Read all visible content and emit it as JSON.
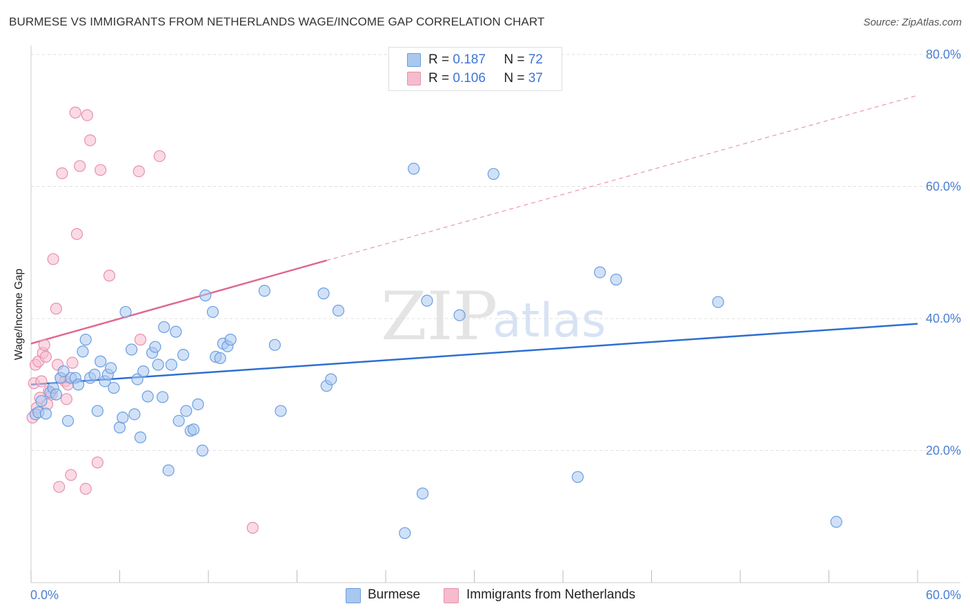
{
  "title": "BURMESE VS IMMIGRANTS FROM NETHERLANDS WAGE/INCOME GAP CORRELATION CHART",
  "source": "Source: ZipAtlas.com",
  "colors": {
    "blue_fill": "#a9c8f0",
    "blue_stroke": "#6a9de0",
    "blue_line": "#2d6fd0",
    "pink_fill": "#f5bccd",
    "pink_stroke": "#e890ac",
    "pink_line": "#e06890",
    "axis_text": "#4a7fd4",
    "grid": "#dddddd"
  },
  "legend_top": {
    "r_label": "R =",
    "n_label": "N =",
    "series": [
      {
        "r": "0.187",
        "n": "72"
      },
      {
        "r": "0.106",
        "n": "37"
      }
    ]
  },
  "legend_bottom": [
    "Burmese",
    "Immigrants from Netherlands"
  ],
  "watermark": {
    "zip": "ZIP",
    "atlas": "atlas"
  },
  "chart_data": {
    "type": "scatter",
    "title": "BURMESE VS IMMIGRANTS FROM NETHERLANDS WAGE/INCOME GAP CORRELATION CHART",
    "xlabel": "",
    "ylabel": "Wage/Income Gap",
    "xlim": [
      0,
      60
    ],
    "ylim": [
      0,
      80
    ],
    "x_tick_labels": [
      "0.0%",
      "60.0%"
    ],
    "y_ticks": [
      20,
      40,
      60,
      80
    ],
    "y_tick_labels": [
      "20.0%",
      "40.0%",
      "60.0%",
      "80.0%"
    ],
    "grid": true,
    "series": [
      {
        "name": "Burmese",
        "r": 0.187,
        "n": 72,
        "trend": {
          "x": [
            0,
            60
          ],
          "y": [
            30.0,
            39.2
          ],
          "style": "solid"
        },
        "points": [
          [
            0.3,
            25.5
          ],
          [
            0.5,
            25.8
          ],
          [
            0.7,
            27.5
          ],
          [
            1.0,
            25.6
          ],
          [
            1.3,
            28.8
          ],
          [
            1.5,
            29.5
          ],
          [
            1.7,
            28.5
          ],
          [
            2.0,
            31.0
          ],
          [
            2.2,
            32.0
          ],
          [
            2.5,
            24.5
          ],
          [
            2.7,
            31.0
          ],
          [
            3.0,
            31.0
          ],
          [
            3.2,
            30.0
          ],
          [
            3.5,
            35.0
          ],
          [
            3.7,
            36.8
          ],
          [
            4.0,
            31.0
          ],
          [
            4.3,
            31.5
          ],
          [
            4.5,
            26.0
          ],
          [
            4.7,
            33.5
          ],
          [
            5.0,
            30.5
          ],
          [
            5.2,
            31.5
          ],
          [
            5.4,
            32.5
          ],
          [
            5.6,
            29.5
          ],
          [
            6.0,
            23.5
          ],
          [
            6.2,
            25.0
          ],
          [
            6.4,
            41.0
          ],
          [
            6.8,
            35.3
          ],
          [
            7.0,
            25.5
          ],
          [
            7.2,
            30.8
          ],
          [
            7.4,
            22.0
          ],
          [
            7.6,
            32.0
          ],
          [
            7.9,
            28.2
          ],
          [
            8.2,
            34.8
          ],
          [
            8.4,
            35.7
          ],
          [
            8.6,
            33.0
          ],
          [
            8.9,
            28.1
          ],
          [
            9.0,
            38.7
          ],
          [
            9.3,
            17.0
          ],
          [
            9.5,
            33.0
          ],
          [
            9.8,
            38.0
          ],
          [
            10.0,
            24.5
          ],
          [
            10.3,
            34.5
          ],
          [
            10.5,
            26.0
          ],
          [
            10.8,
            23.0
          ],
          [
            11.0,
            23.2
          ],
          [
            11.3,
            27.0
          ],
          [
            11.6,
            20.0
          ],
          [
            11.8,
            43.5
          ],
          [
            12.3,
            41.0
          ],
          [
            12.5,
            34.2
          ],
          [
            12.8,
            34.0
          ],
          [
            13.0,
            36.2
          ],
          [
            13.3,
            35.8
          ],
          [
            13.5,
            36.8
          ],
          [
            15.8,
            44.2
          ],
          [
            16.5,
            36.0
          ],
          [
            16.9,
            26.0
          ],
          [
            19.8,
            43.8
          ],
          [
            20.0,
            29.8
          ],
          [
            20.3,
            30.8
          ],
          [
            20.8,
            41.2
          ],
          [
            25.3,
            7.5
          ],
          [
            25.9,
            62.7
          ],
          [
            26.5,
            13.5
          ],
          [
            26.8,
            42.7
          ],
          [
            29.0,
            40.5
          ],
          [
            31.3,
            61.9
          ],
          [
            37.0,
            16.0
          ],
          [
            38.5,
            47.0
          ],
          [
            39.6,
            45.9
          ],
          [
            46.5,
            42.5
          ],
          [
            54.5,
            9.2
          ]
        ]
      },
      {
        "name": "Immigrants from Netherlands",
        "r": 0.106,
        "n": 37,
        "trend": {
          "x": [
            0,
            20
          ],
          "y": [
            36.2,
            48.8
          ],
          "style": "solid",
          "extended": {
            "x": [
              20,
              60
            ],
            "y": [
              48.8,
              73.8
            ],
            "style": "dashed"
          }
        },
        "points": [
          [
            0.1,
            25.0
          ],
          [
            0.2,
            30.2
          ],
          [
            0.3,
            33.0
          ],
          [
            0.5,
            33.5
          ],
          [
            0.6,
            28.0
          ],
          [
            0.7,
            30.5
          ],
          [
            0.8,
            34.8
          ],
          [
            0.9,
            36.0
          ],
          [
            1.0,
            34.2
          ],
          [
            1.1,
            27.0
          ],
          [
            1.2,
            29.0
          ],
          [
            1.5,
            49.0
          ],
          [
            1.7,
            41.5
          ],
          [
            1.8,
            33.0
          ],
          [
            1.9,
            14.5
          ],
          [
            2.0,
            31.0
          ],
          [
            2.1,
            62.0
          ],
          [
            2.3,
            30.5
          ],
          [
            2.4,
            27.8
          ],
          [
            2.5,
            30.0
          ],
          [
            2.7,
            16.3
          ],
          [
            2.8,
            33.3
          ],
          [
            3.0,
            71.2
          ],
          [
            3.1,
            52.8
          ],
          [
            3.3,
            63.1
          ],
          [
            3.7,
            14.2
          ],
          [
            3.8,
            70.8
          ],
          [
            4.0,
            67.0
          ],
          [
            4.5,
            18.2
          ],
          [
            4.7,
            62.5
          ],
          [
            5.3,
            46.5
          ],
          [
            7.3,
            62.3
          ],
          [
            7.4,
            36.8
          ],
          [
            8.7,
            64.6
          ],
          [
            15.0,
            8.3
          ],
          [
            1.4,
            28.5
          ],
          [
            0.4,
            26.5
          ]
        ]
      }
    ]
  }
}
